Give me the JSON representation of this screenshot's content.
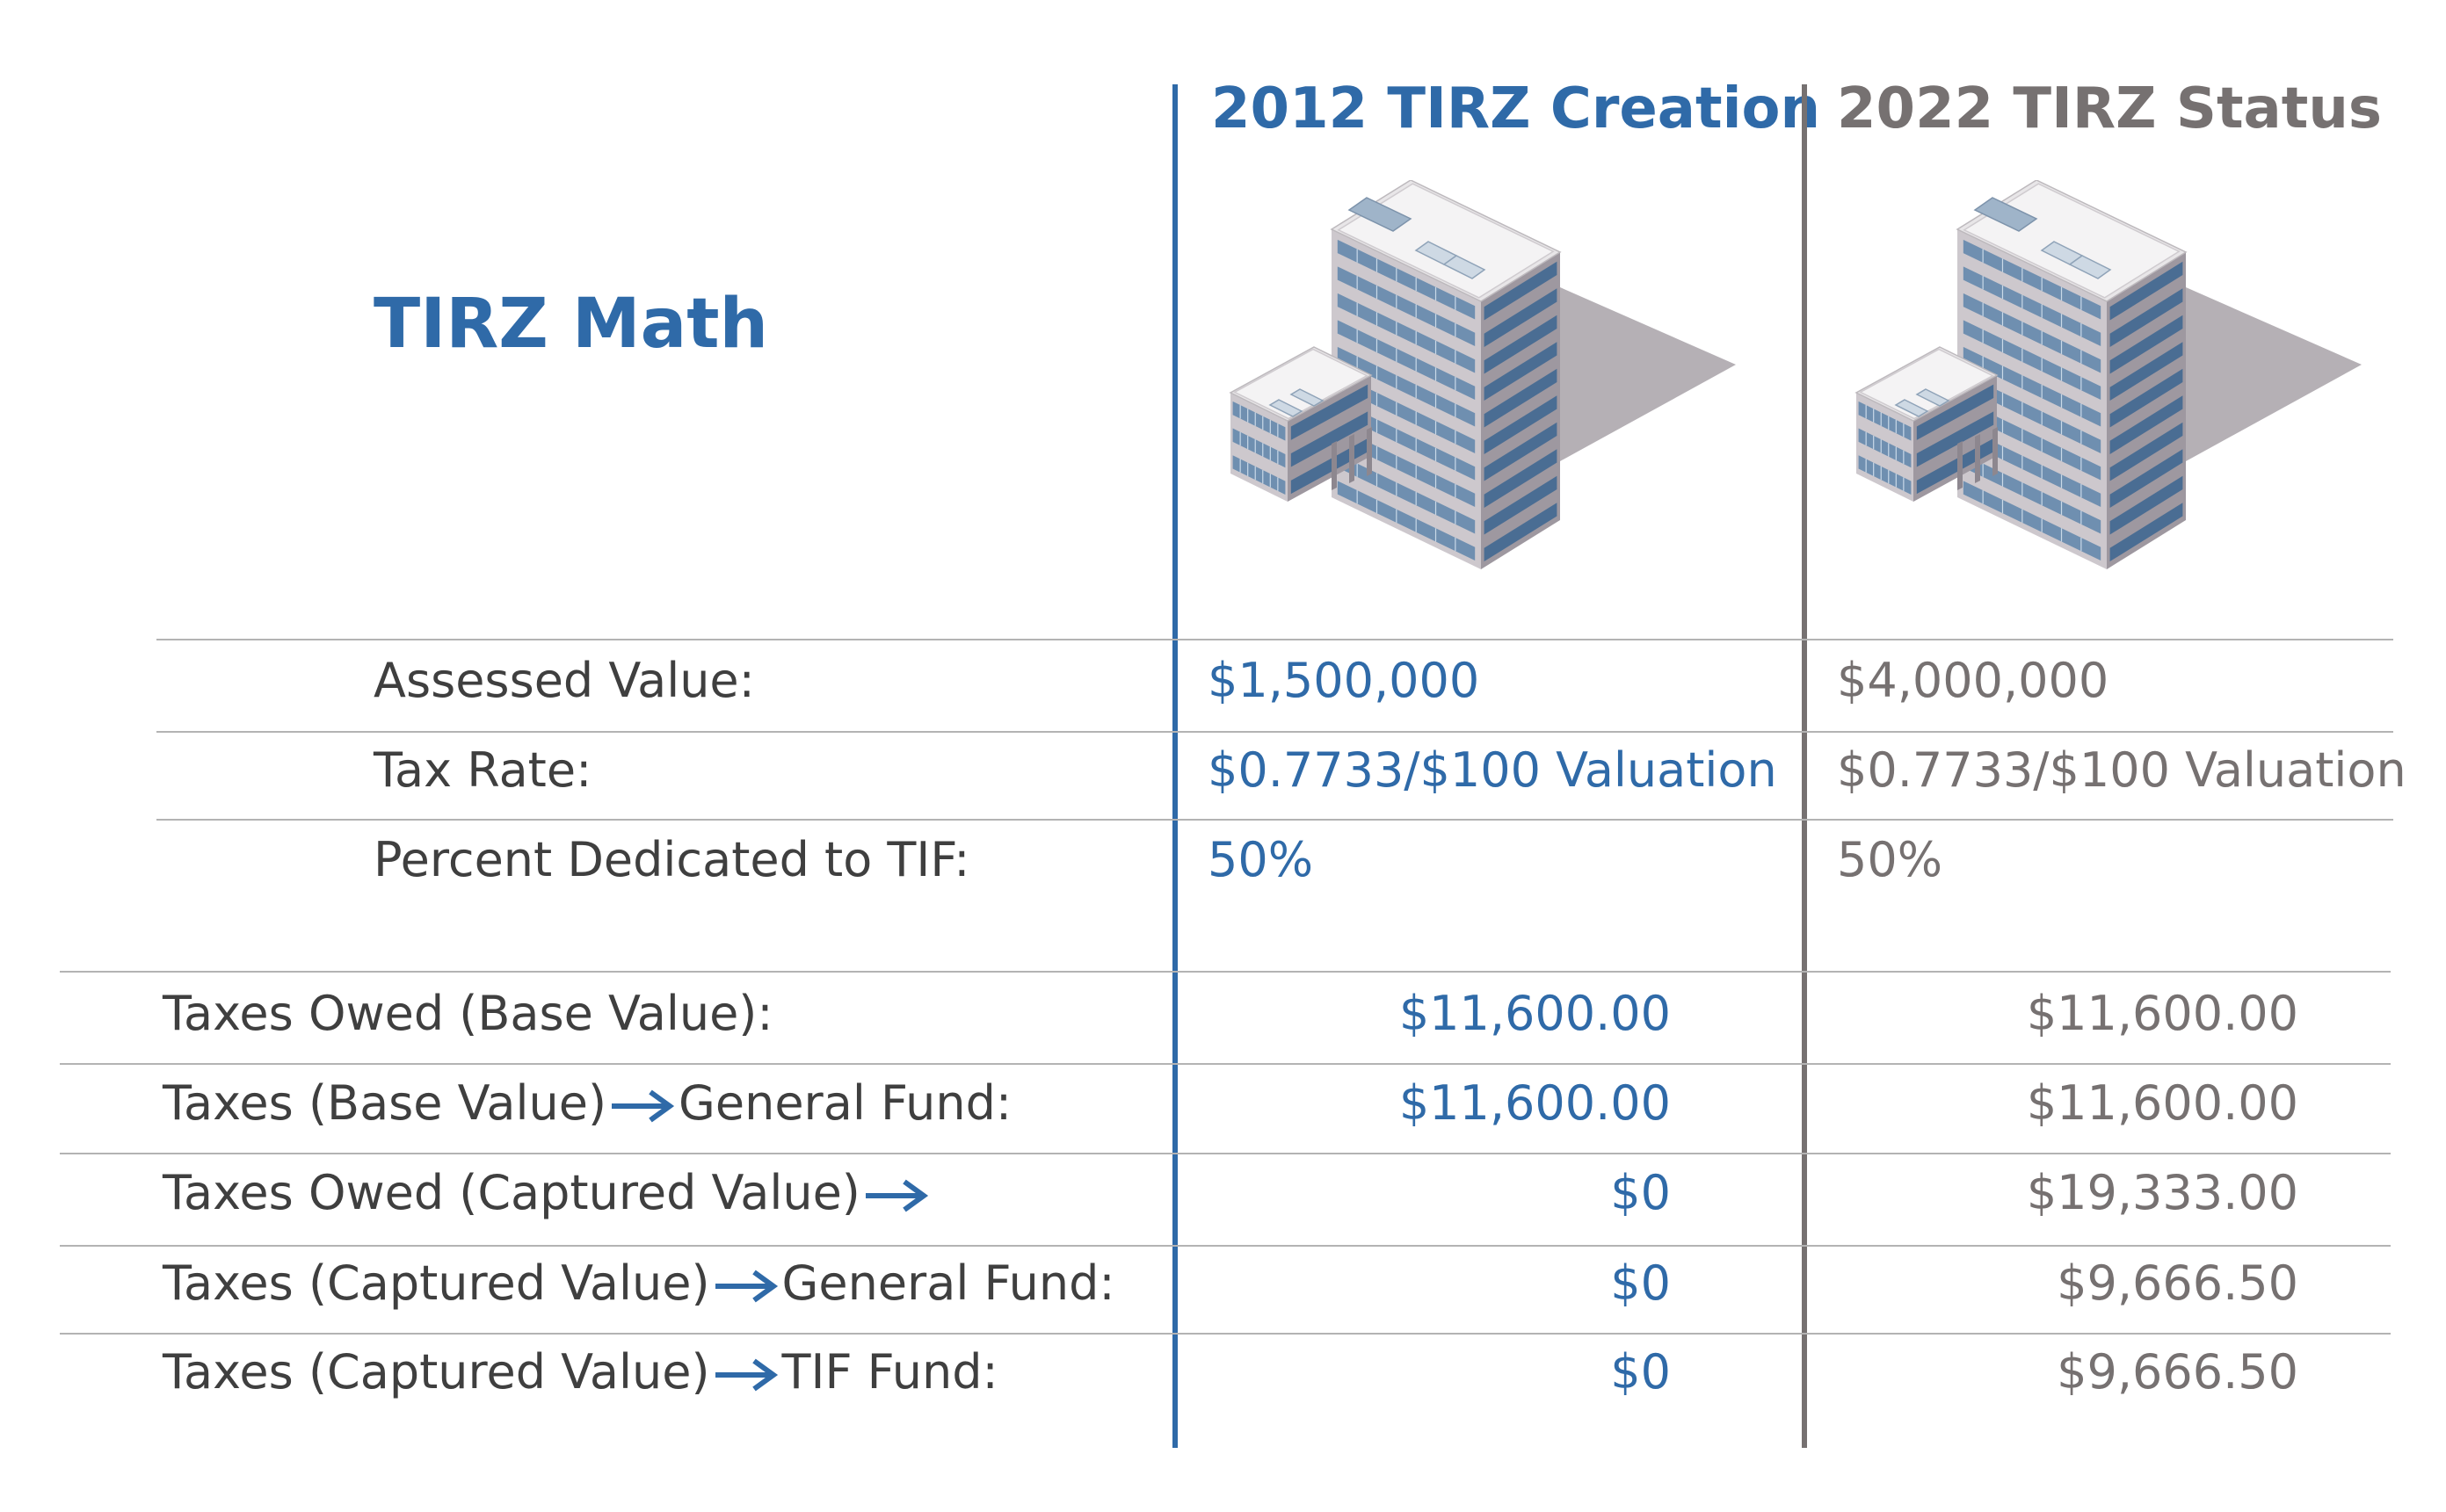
{
  "title": "TIRZ Math",
  "columns": {
    "creation": {
      "header": "2012 TIRZ Creation",
      "color": "#2f6aa8"
    },
    "status": {
      "header": "2022 TIRZ Status",
      "color": "#767171"
    }
  },
  "top_rows": [
    {
      "label": "Assessed Value:",
      "creation": "$1,500,000",
      "status": "$4,000,000"
    },
    {
      "label": "Tax Rate:",
      "creation": "$0.7733/$100 Valuation",
      "status": "$0.7733/$100 Valuation"
    },
    {
      "label": "Percent Dedicated to TIF:",
      "creation": "50%",
      "status": "50%"
    }
  ],
  "bottom_rows": [
    {
      "label_a": "Taxes Owed (Base Value):",
      "label_b": "",
      "creation": "$11,600.00",
      "status": "$11,600.00"
    },
    {
      "label_a": "Taxes (Base Value)",
      "label_b": "General Fund:",
      "creation": "$11,600.00",
      "status": "$11,600.00"
    },
    {
      "label_a": "Taxes Owed (Captured Value)",
      "label_b": "",
      "creation": "$0",
      "status": "$19,333.00"
    },
    {
      "label_a": "Taxes (Captured Value)",
      "label_b": "General Fund:",
      "creation": "$0",
      "status": "$9,666.50"
    },
    {
      "label_a": "Taxes (Captured Value)",
      "label_b": "TIF Fund:",
      "creation": "$0",
      "status": "$9,666.50"
    }
  ],
  "icons": {
    "building": "office-building-icon",
    "arrow": "right-arrow-icon"
  },
  "colors": {
    "accent_blue": "#2f6aa8",
    "accent_grey": "#767171",
    "rule": "#b3b3b3",
    "label_text": "#3f3f3f"
  }
}
